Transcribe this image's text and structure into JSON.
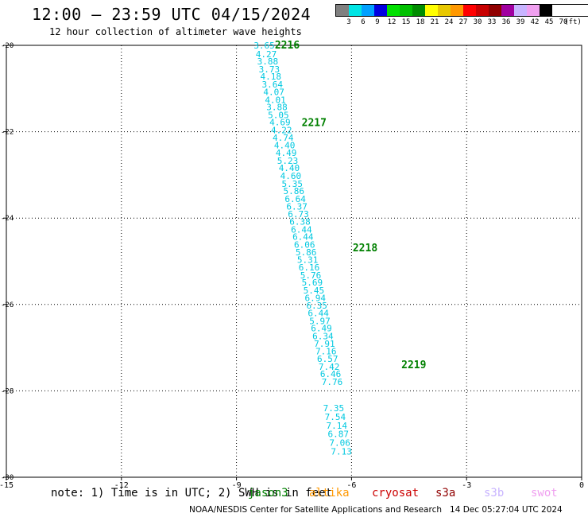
{
  "header": {
    "title": "12:00 – 23:59 UTC 04/15/2024",
    "subtitle": "12 hour collection of altimeter wave heights"
  },
  "legend": {
    "unit": "(ft)",
    "colors": [
      "#808080",
      "#00e5e5",
      "#00a0ff",
      "#0000e0",
      "#00e000",
      "#00c000",
      "#008c00",
      "#ffff00",
      "#e8c800",
      "#ff9800",
      "#ff0000",
      "#c80000",
      "#900000",
      "#a000a0",
      "#c8b4ff",
      "#f0a0f0",
      "#000000"
    ],
    "labels": [
      "3",
      "6",
      "9",
      "12",
      "15",
      "18",
      "21",
      "24",
      "27",
      "30",
      "33",
      "36",
      "39",
      "42",
      "45",
      "70"
    ]
  },
  "axes": {
    "x_ticks": [
      "-15",
      "-12",
      "-9",
      "-6",
      "-3",
      "0"
    ],
    "y_ticks": [
      "-20",
      "-22",
      "-24",
      "-26",
      "-28",
      "-30"
    ]
  },
  "chart_data": {
    "type": "scatter",
    "xlim": [
      -15,
      0
    ],
    "ylim": [
      -30,
      -20
    ],
    "grid": true,
    "track_label_color": "#008000",
    "observation_color": "#00c8e0",
    "track_labels": [
      {
        "text": "2216",
        "lon": -8.0,
        "lat": -20.0
      },
      {
        "text": "2217",
        "lon": -7.3,
        "lat": -21.8
      },
      {
        "text": "2218",
        "lon": -5.97,
        "lat": -24.7
      },
      {
        "text": "2219",
        "lon": -4.7,
        "lat": -27.4
      }
    ],
    "observations": [
      {
        "value": "3.65",
        "lon": -8.55,
        "lat": -20.0
      },
      {
        "value": "4.27",
        "lon": -8.5,
        "lat": -20.2
      },
      {
        "value": "3.88",
        "lon": -8.46,
        "lat": -20.37
      },
      {
        "value": "3.73",
        "lon": -8.42,
        "lat": -20.55
      },
      {
        "value": "4.18",
        "lon": -8.38,
        "lat": -20.72
      },
      {
        "value": "3.64",
        "lon": -8.34,
        "lat": -20.9
      },
      {
        "value": "4.07",
        "lon": -8.3,
        "lat": -21.08
      },
      {
        "value": "4.01",
        "lon": -8.26,
        "lat": -21.26
      },
      {
        "value": "3.88",
        "lon": -8.22,
        "lat": -21.43
      },
      {
        "value": "5.05",
        "lon": -8.18,
        "lat": -21.61
      },
      {
        "value": "4.69",
        "lon": -8.14,
        "lat": -21.78
      },
      {
        "value": "4.22",
        "lon": -8.1,
        "lat": -21.96
      },
      {
        "value": "4.74",
        "lon": -8.06,
        "lat": -22.14
      },
      {
        "value": "4.40",
        "lon": -8.02,
        "lat": -22.31
      },
      {
        "value": "4.49",
        "lon": -7.98,
        "lat": -22.49
      },
      {
        "value": "5.23",
        "lon": -7.94,
        "lat": -22.67
      },
      {
        "value": "4.40",
        "lon": -7.9,
        "lat": -22.84
      },
      {
        "value": "4.60",
        "lon": -7.86,
        "lat": -23.02
      },
      {
        "value": "5.35",
        "lon": -7.82,
        "lat": -23.2
      },
      {
        "value": "5.86",
        "lon": -7.78,
        "lat": -23.37
      },
      {
        "value": "6.64",
        "lon": -7.74,
        "lat": -23.55
      },
      {
        "value": "6.37",
        "lon": -7.7,
        "lat": -23.73
      },
      {
        "value": "6.73",
        "lon": -7.66,
        "lat": -23.9
      },
      {
        "value": "6.38",
        "lon": -7.62,
        "lat": -24.08
      },
      {
        "value": "6.44",
        "lon": -7.58,
        "lat": -24.26
      },
      {
        "value": "6.44",
        "lon": -7.54,
        "lat": -24.43
      },
      {
        "value": "6.06",
        "lon": -7.5,
        "lat": -24.61
      },
      {
        "value": "5.86",
        "lon": -7.46,
        "lat": -24.79
      },
      {
        "value": "5.31",
        "lon": -7.42,
        "lat": -24.96
      },
      {
        "value": "6.16",
        "lon": -7.38,
        "lat": -25.14
      },
      {
        "value": "5.76",
        "lon": -7.34,
        "lat": -25.32
      },
      {
        "value": "5.69",
        "lon": -7.3,
        "lat": -25.49
      },
      {
        "value": "5.45",
        "lon": -7.26,
        "lat": -25.67
      },
      {
        "value": "6.94",
        "lon": -7.22,
        "lat": -25.85
      },
      {
        "value": "6.35",
        "lon": -7.18,
        "lat": -26.02
      },
      {
        "value": "6.44",
        "lon": -7.14,
        "lat": -26.2
      },
      {
        "value": "5.97",
        "lon": -7.1,
        "lat": -26.38
      },
      {
        "value": "6.49",
        "lon": -7.06,
        "lat": -26.55
      },
      {
        "value": "6.34",
        "lon": -7.02,
        "lat": -26.73
      },
      {
        "value": "7.91",
        "lon": -6.98,
        "lat": -26.91
      },
      {
        "value": "7.16",
        "lon": -6.94,
        "lat": -27.08
      },
      {
        "value": "6.57",
        "lon": -6.9,
        "lat": -27.26
      },
      {
        "value": "7.42",
        "lon": -6.86,
        "lat": -27.44
      },
      {
        "value": "6.46",
        "lon": -6.82,
        "lat": -27.61
      },
      {
        "value": "7.76",
        "lon": -6.78,
        "lat": -27.79
      },
      {
        "value": "7.35",
        "lon": -6.74,
        "lat": -28.4
      },
      {
        "value": "7.54",
        "lon": -6.7,
        "lat": -28.6
      },
      {
        "value": "7.14",
        "lon": -6.66,
        "lat": -28.8
      },
      {
        "value": "6.87",
        "lon": -6.62,
        "lat": -29.0
      },
      {
        "value": "7.06",
        "lon": -6.58,
        "lat": -29.2
      },
      {
        "value": "7.13",
        "lon": -6.54,
        "lat": -29.4
      }
    ]
  },
  "footer": {
    "note": "note: 1) Time is in UTC; 2) SWH is in feet",
    "satellites": [
      {
        "name": "jason3",
        "color": "#008000"
      },
      {
        "name": "altika",
        "color": "#ff9800"
      },
      {
        "name": "cryosat",
        "color": "#cc0000"
      },
      {
        "name": "s3a",
        "color": "#900000"
      },
      {
        "name": "s3b",
        "color": "#c8b4ff"
      },
      {
        "name": "swot",
        "color": "#f0a0f0"
      }
    ],
    "credit": "NOAA/NESDIS Center for Satellite Applications and Research",
    "generated": "14 Dec 05:27:04 UTC 2024"
  }
}
